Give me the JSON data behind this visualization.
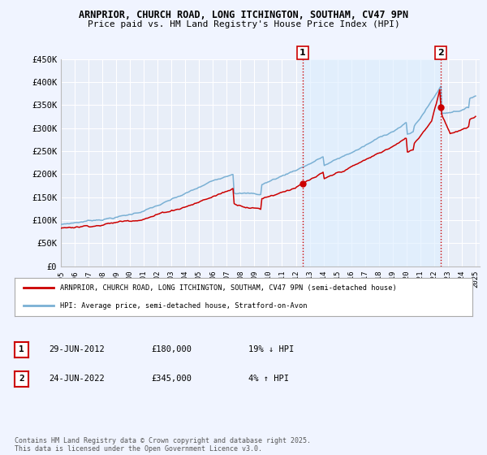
{
  "title_line1": "ARNPRIOR, CHURCH ROAD, LONG ITCHINGTON, SOUTHAM, CV47 9PN",
  "title_line2": "Price paid vs. HM Land Registry's House Price Index (HPI)",
  "ylim": [
    0,
    450000
  ],
  "yticks": [
    0,
    50000,
    100000,
    150000,
    200000,
    250000,
    300000,
    350000,
    400000,
    450000
  ],
  "ytick_labels": [
    "£0",
    "£50K",
    "£100K",
    "£150K",
    "£200K",
    "£250K",
    "£300K",
    "£350K",
    "£400K",
    "£450K"
  ],
  "x_start_year": 1995,
  "x_end_year": 2025,
  "sale1_date": 2012.49,
  "sale1_price": 180000,
  "sale1_label": "1",
  "sale2_date": 2022.48,
  "sale2_price": 345000,
  "sale2_label": "2",
  "red_line_color": "#cc0000",
  "blue_line_color": "#7ab0d4",
  "shade_color": "#ddeeff",
  "vline_color": "#cc0000",
  "background_color": "#f0f4ff",
  "plot_bg_color": "#e8eef8",
  "grid_color": "#ffffff",
  "legend_line1": "ARNPRIOR, CHURCH ROAD, LONG ITCHINGTON, SOUTHAM, CV47 9PN (semi-detached house)",
  "legend_line2": "HPI: Average price, semi-detached house, Stratford-on-Avon",
  "table_row1": [
    "1",
    "29-JUN-2012",
    "£180,000",
    "19% ↓ HPI"
  ],
  "table_row2": [
    "2",
    "24-JUN-2022",
    "£345,000",
    "4% ↑ HPI"
  ],
  "footer": "Contains HM Land Registry data © Crown copyright and database right 2025.\nThis data is licensed under the Open Government Licence v3.0."
}
